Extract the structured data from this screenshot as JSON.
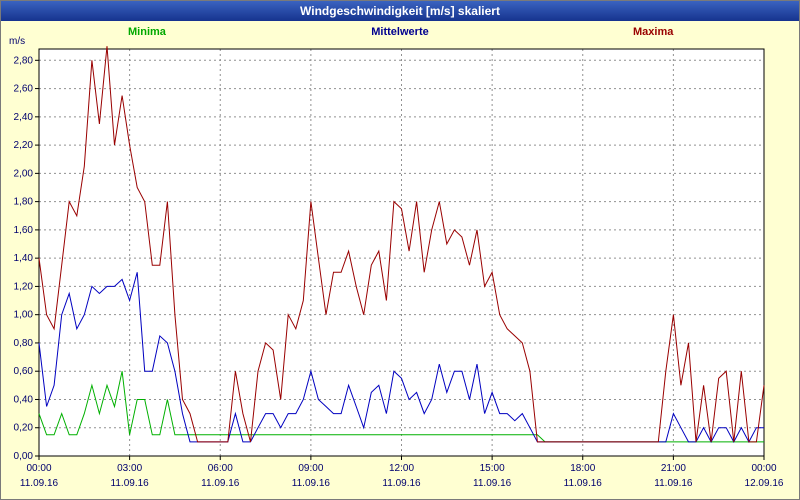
{
  "window": {
    "title": "Windgeschwindigkeit [m/s] skaliert"
  },
  "colors": {
    "background": "#ffffd2",
    "titlebar": "#16338e",
    "plot_background": "#ffffff",
    "grid": "#909090",
    "axis": "#000000",
    "tick_text": "#00006e",
    "minima": "#00a800",
    "mittelwerte": "#0000c0",
    "maxima": "#990000"
  },
  "chart_data": {
    "type": "line",
    "title": "Windgeschwindigkeit [m/s] skaliert",
    "y_unit": "m/s",
    "ylim": [
      0,
      2.88
    ],
    "y_tick_step": 0.2,
    "y_tick_labels": [
      "0,00",
      "0,20",
      "0,40",
      "0,60",
      "0,80",
      "1,00",
      "1,20",
      "1,40",
      "1,60",
      "1,80",
      "2,00",
      "2,20",
      "2,40",
      "2,60",
      "2,80"
    ],
    "x_hours": 24,
    "sample_interval_minutes": 15,
    "grid": "dashed",
    "legend_position": "top",
    "x_ticks": [
      {
        "time": "00:00",
        "date": "11.09.16"
      },
      {
        "time": "03:00",
        "date": "11.09.16"
      },
      {
        "time": "06:00",
        "date": "11.09.16"
      },
      {
        "time": "09:00",
        "date": "11.09.16"
      },
      {
        "time": "12:00",
        "date": "11.09.16"
      },
      {
        "time": "15:00",
        "date": "11.09.16"
      },
      {
        "time": "18:00",
        "date": "11.09.16"
      },
      {
        "time": "21:00",
        "date": "11.09.16"
      },
      {
        "time": "00:00",
        "date": "12.09.16"
      }
    ],
    "legend": [
      {
        "label": "Minima",
        "color": "#00a800"
      },
      {
        "label": "Mittelwerte",
        "color": "#000090"
      },
      {
        "label": "Maxima",
        "color": "#990000"
      }
    ],
    "series": [
      {
        "name": "Minima",
        "color": "#00b000",
        "values": [
          0.3,
          0.15,
          0.15,
          0.3,
          0.15,
          0.15,
          0.3,
          0.5,
          0.3,
          0.5,
          0.35,
          0.6,
          0.15,
          0.4,
          0.4,
          0.15,
          0.15,
          0.4,
          0.15,
          0.15,
          0.15,
          0.15,
          0.15,
          0.15,
          0.15,
          0.15,
          0.15,
          0.15,
          0.15,
          0.15,
          0.15,
          0.15,
          0.15,
          0.15,
          0.15,
          0.15,
          0.15,
          0.15,
          0.15,
          0.15,
          0.15,
          0.15,
          0.15,
          0.15,
          0.15,
          0.15,
          0.15,
          0.15,
          0.15,
          0.15,
          0.15,
          0.15,
          0.15,
          0.15,
          0.15,
          0.15,
          0.15,
          0.15,
          0.15,
          0.15,
          0.15,
          0.15,
          0.15,
          0.15,
          0.15,
          0.15,
          0.15,
          0.1,
          0.1,
          0.1,
          0.1,
          0.1,
          0.1,
          0.1,
          0.1,
          0.1,
          0.1,
          0.1,
          0.1,
          0.1,
          0.1,
          0.1,
          0.1,
          0.1,
          0.1,
          0.1,
          0.1,
          0.1,
          0.1,
          0.1,
          0.1,
          0.1,
          0.1,
          0.1,
          0.1,
          0.1,
          0.1
        ]
      },
      {
        "name": "Mittelwerte",
        "color": "#0000c0",
        "values": [
          0.8,
          0.35,
          0.5,
          1.0,
          1.15,
          0.9,
          1.0,
          1.2,
          1.15,
          1.2,
          1.2,
          1.25,
          1.1,
          1.3,
          0.6,
          0.6,
          0.85,
          0.8,
          0.6,
          0.3,
          0.1,
          0.1,
          0.1,
          0.1,
          0.1,
          0.1,
          0.3,
          0.1,
          0.1,
          0.2,
          0.3,
          0.3,
          0.2,
          0.3,
          0.3,
          0.4,
          0.6,
          0.4,
          0.35,
          0.3,
          0.3,
          0.5,
          0.35,
          0.2,
          0.45,
          0.5,
          0.3,
          0.6,
          0.55,
          0.4,
          0.45,
          0.3,
          0.4,
          0.65,
          0.45,
          0.6,
          0.6,
          0.4,
          0.65,
          0.3,
          0.45,
          0.3,
          0.3,
          0.25,
          0.3,
          0.2,
          0.1,
          0.1,
          0.1,
          0.1,
          0.1,
          0.1,
          0.1,
          0.1,
          0.1,
          0.1,
          0.1,
          0.1,
          0.1,
          0.1,
          0.1,
          0.1,
          0.1,
          0.1,
          0.3,
          0.2,
          0.1,
          0.1,
          0.2,
          0.1,
          0.2,
          0.2,
          0.1,
          0.2,
          0.1,
          0.2,
          0.2
        ]
      },
      {
        "name": "Maxima",
        "color": "#990000",
        "values": [
          1.4,
          1.0,
          0.9,
          1.35,
          1.8,
          1.7,
          2.05,
          2.8,
          2.35,
          2.9,
          2.2,
          2.55,
          2.2,
          1.9,
          1.8,
          1.35,
          1.35,
          1.8,
          1.0,
          0.4,
          0.3,
          0.1,
          0.1,
          0.1,
          0.1,
          0.1,
          0.6,
          0.3,
          0.1,
          0.6,
          0.8,
          0.75,
          0.4,
          1.0,
          0.9,
          1.1,
          1.8,
          1.4,
          1.0,
          1.3,
          1.3,
          1.45,
          1.2,
          1.0,
          1.35,
          1.45,
          1.1,
          1.8,
          1.75,
          1.45,
          1.8,
          1.3,
          1.6,
          1.8,
          1.5,
          1.6,
          1.55,
          1.35,
          1.6,
          1.2,
          1.3,
          1.0,
          0.9,
          0.85,
          0.8,
          0.6,
          0.1,
          0.1,
          0.1,
          0.1,
          0.1,
          0.1,
          0.1,
          0.1,
          0.1,
          0.1,
          0.1,
          0.1,
          0.1,
          0.1,
          0.1,
          0.1,
          0.1,
          0.6,
          1.0,
          0.5,
          0.8,
          0.1,
          0.5,
          0.1,
          0.55,
          0.6,
          0.1,
          0.6,
          0.1,
          0.1,
          0.5
        ]
      }
    ]
  }
}
